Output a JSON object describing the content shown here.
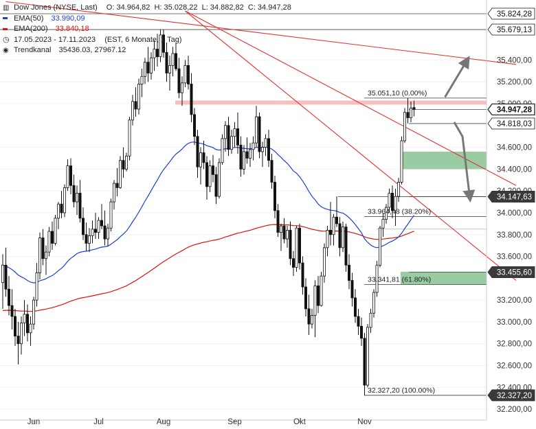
{
  "legend": {
    "instrument": "Dow Jones (NYSE, Last)",
    "ohlc": "O: 34.964,82  H: 35.028,22  L: 34.882,82  C: 34.947,28",
    "ema50_label": "EMA(50)",
    "ema50_value": "33.990,09",
    "ema200_label": "EMA(200)",
    "ema200_value": "33.840,18",
    "range": "17.05.2023 - 17.11.2023",
    "range_info": "(EST, 6 Monate, 1 Tag)",
    "channel_label": "Trendkanal",
    "channel_value": "35436.03, 27967.12"
  },
  "colors": {
    "ema50": "#1a3fd6",
    "ema200": "#e01010",
    "trend_line": "#e53030",
    "candle": "#111111",
    "fib_zone": "#8fc79a",
    "resistance_band": "#f4b6b6",
    "arrow": "#777777",
    "label_bg": "#3a3a3a"
  },
  "chart_data": {
    "type": "candlestick",
    "title": "Dow Jones (NYSE, Last)",
    "period": "17.05.2023 - 17.11.2023",
    "y_axis": {
      "range": [
        32100,
        35950
      ],
      "ticks": [
        "35.400,00",
        "35.200,00",
        "35.000,00",
        "34.600,00",
        "34.400,00",
        "34.200,00",
        "34.000,00",
        "33.800,00",
        "33.600,00",
        "33.200,00",
        "33.000,00",
        "32.800,00",
        "32.600,00",
        "32.400,00",
        "32.200,00"
      ],
      "tick_values": [
        35400,
        35200,
        35000,
        34600,
        34400,
        34200,
        34000,
        33800,
        33600,
        33200,
        33000,
        32800,
        32600,
        32400,
        32200
      ]
    },
    "x_axis": {
      "labels": [
        "Jun",
        "Jul",
        "Aug",
        "Sep",
        "Okt",
        "Nov"
      ],
      "label_index": [
        10,
        31,
        52,
        75,
        96,
        117
      ]
    },
    "price_labels": [
      {
        "text": "35.824,28",
        "value": 35824.28,
        "style": "outline"
      },
      {
        "text": "35.679,13",
        "value": 35679.13,
        "style": "outline"
      },
      {
        "text": "34.947,28",
        "value": 34947.28,
        "style": "outline-bold"
      },
      {
        "text": "34.818,03",
        "value": 34818.03,
        "style": "outline"
      },
      {
        "text": "34.147,63",
        "value": 34147.63,
        "style": "dark"
      },
      {
        "text": "33.455,60",
        "value": 33455.6,
        "style": "dark"
      },
      {
        "text": "32.327,20",
        "value": 32327.2,
        "style": "dark"
      }
    ],
    "fibonacci": [
      {
        "label": "35.051,10 (0.00%)",
        "value": 35051.1
      },
      {
        "label": "33.964,48 (38.20%)",
        "value": 33964.48
      },
      {
        "label": "33.341,81 (61.80%)",
        "value": 33341.81
      },
      {
        "label": "32.327,20 (100.00%)",
        "value": 32327.2
      }
    ],
    "zones": [
      {
        "name": "upper",
        "from": 34400,
        "to": 34560
      },
      {
        "name": "lower",
        "from": 33345,
        "to": 33460
      }
    ],
    "resistance": {
      "value": 35010
    },
    "support_lines": [
      {
        "value": 34147.63
      },
      {
        "value": 33850
      }
    ],
    "ema200_start": 33100,
    "trend_lines": [
      {
        "from": [
          1,
          35935
        ],
        "to": [
          166,
          35360
        ]
      },
      {
        "from": [
          59,
          35850
        ],
        "to": [
          166,
          33380
        ]
      },
      {
        "from": [
          59,
          35850
        ],
        "to": [
          166,
          34250
        ]
      }
    ],
    "arrows": [
      {
        "from": [
          143,
          35060
        ],
        "to": [
          150,
          35390
        ]
      },
      {
        "from": [
          146,
          34830
        ],
        "to": [
          151,
          34150
        ]
      }
    ],
    "candles": [
      {
        "o": 33360,
        "h": 33620,
        "l": 33120,
        "c": 33520
      },
      {
        "o": 33520,
        "h": 33680,
        "l": 33230,
        "c": 33300
      },
      {
        "o": 33300,
        "h": 33420,
        "l": 33060,
        "c": 33150
      },
      {
        "o": 33150,
        "h": 33300,
        "l": 32930,
        "c": 33050
      },
      {
        "o": 33050,
        "h": 33120,
        "l": 32780,
        "c": 32870
      },
      {
        "o": 32870,
        "h": 33000,
        "l": 32610,
        "c": 32800
      },
      {
        "o": 32800,
        "h": 33050,
        "l": 32700,
        "c": 32990
      },
      {
        "o": 32990,
        "h": 33200,
        "l": 32870,
        "c": 33070
      },
      {
        "o": 33070,
        "h": 33160,
        "l": 32820,
        "c": 32900
      },
      {
        "o": 32900,
        "h": 33050,
        "l": 32780,
        "c": 32980
      },
      {
        "o": 32980,
        "h": 33230,
        "l": 32930,
        "c": 33200
      },
      {
        "o": 33200,
        "h": 33540,
        "l": 33140,
        "c": 33450
      },
      {
        "o": 33450,
        "h": 33820,
        "l": 33390,
        "c": 33770
      },
      {
        "o": 33770,
        "h": 33850,
        "l": 33520,
        "c": 33580
      },
      {
        "o": 33580,
        "h": 33700,
        "l": 33430,
        "c": 33640
      },
      {
        "o": 33640,
        "h": 33870,
        "l": 33600,
        "c": 33830
      },
      {
        "o": 33830,
        "h": 33920,
        "l": 33660,
        "c": 33720
      },
      {
        "o": 33720,
        "h": 33980,
        "l": 33700,
        "c": 33950
      },
      {
        "o": 33950,
        "h": 34100,
        "l": 33850,
        "c": 34080
      },
      {
        "o": 34080,
        "h": 34200,
        "l": 33950,
        "c": 34000
      },
      {
        "o": 34000,
        "h": 34260,
        "l": 33960,
        "c": 34230
      },
      {
        "o": 34230,
        "h": 34490,
        "l": 34200,
        "c": 34430
      },
      {
        "o": 34430,
        "h": 34500,
        "l": 34170,
        "c": 34250
      },
      {
        "o": 34250,
        "h": 34350,
        "l": 34050,
        "c": 34100
      },
      {
        "o": 34100,
        "h": 34250,
        "l": 33980,
        "c": 34180
      },
      {
        "o": 34180,
        "h": 34300,
        "l": 33910,
        "c": 33950
      },
      {
        "o": 33950,
        "h": 34050,
        "l": 33750,
        "c": 33800
      },
      {
        "o": 33800,
        "h": 33910,
        "l": 33650,
        "c": 33720
      },
      {
        "o": 33720,
        "h": 33860,
        "l": 33640,
        "c": 33790
      },
      {
        "o": 33790,
        "h": 33930,
        "l": 33720,
        "c": 33850
      },
      {
        "o": 33850,
        "h": 34000,
        "l": 33760,
        "c": 33820
      },
      {
        "o": 33820,
        "h": 33960,
        "l": 33760,
        "c": 33930
      },
      {
        "o": 33930,
        "h": 34080,
        "l": 33850,
        "c": 33880
      },
      {
        "o": 33880,
        "h": 34020,
        "l": 33700,
        "c": 33760
      },
      {
        "o": 33760,
        "h": 33900,
        "l": 33690,
        "c": 33860
      },
      {
        "o": 33860,
        "h": 34130,
        "l": 33830,
        "c": 34100
      },
      {
        "o": 34100,
        "h": 34300,
        "l": 34030,
        "c": 34270
      },
      {
        "o": 34270,
        "h": 34410,
        "l": 34150,
        "c": 34230
      },
      {
        "o": 34230,
        "h": 34520,
        "l": 34220,
        "c": 34480
      },
      {
        "o": 34480,
        "h": 34600,
        "l": 34320,
        "c": 34400
      },
      {
        "o": 34400,
        "h": 34550,
        "l": 34380,
        "c": 34520
      },
      {
        "o": 34520,
        "h": 34880,
        "l": 34480,
        "c": 34850
      },
      {
        "o": 34850,
        "h": 35080,
        "l": 34800,
        "c": 35020
      },
      {
        "o": 35020,
        "h": 35150,
        "l": 34880,
        "c": 34950
      },
      {
        "o": 34950,
        "h": 35230,
        "l": 34900,
        "c": 35180
      },
      {
        "o": 35180,
        "h": 35320,
        "l": 35060,
        "c": 35250
      },
      {
        "o": 35250,
        "h": 35420,
        "l": 35180,
        "c": 35380
      },
      {
        "o": 35380,
        "h": 35520,
        "l": 35200,
        "c": 35280
      },
      {
        "o": 35280,
        "h": 35470,
        "l": 35220,
        "c": 35420
      },
      {
        "o": 35420,
        "h": 35580,
        "l": 35300,
        "c": 35500
      },
      {
        "o": 35500,
        "h": 35640,
        "l": 35340,
        "c": 35430
      },
      {
        "o": 35430,
        "h": 35680,
        "l": 35380,
        "c": 35630
      },
      {
        "o": 35630,
        "h": 35680,
        "l": 35420,
        "c": 35470
      },
      {
        "o": 35470,
        "h": 35560,
        "l": 35200,
        "c": 35280
      },
      {
        "o": 35280,
        "h": 35440,
        "l": 35120,
        "c": 35350
      },
      {
        "o": 35350,
        "h": 35520,
        "l": 35250,
        "c": 35460
      },
      {
        "o": 35460,
        "h": 35560,
        "l": 35300,
        "c": 35320
      },
      {
        "o": 35320,
        "h": 35420,
        "l": 35050,
        "c": 35100
      },
      {
        "o": 35100,
        "h": 35250,
        "l": 34980,
        "c": 35190
      },
      {
        "o": 35190,
        "h": 35400,
        "l": 35150,
        "c": 35350
      },
      {
        "o": 35350,
        "h": 35440,
        "l": 35130,
        "c": 35180
      },
      {
        "o": 35180,
        "h": 35280,
        "l": 34830,
        "c": 34900
      },
      {
        "o": 34900,
        "h": 34960,
        "l": 34620,
        "c": 34700
      },
      {
        "o": 34700,
        "h": 34760,
        "l": 34320,
        "c": 34420
      },
      {
        "o": 34420,
        "h": 34600,
        "l": 34260,
        "c": 34550
      },
      {
        "o": 34550,
        "h": 34660,
        "l": 34400,
        "c": 34460
      },
      {
        "o": 34460,
        "h": 34520,
        "l": 34120,
        "c": 34240
      },
      {
        "o": 34240,
        "h": 34480,
        "l": 34190,
        "c": 34430
      },
      {
        "o": 34430,
        "h": 34530,
        "l": 34280,
        "c": 34350
      },
      {
        "o": 34350,
        "h": 34420,
        "l": 34080,
        "c": 34150
      },
      {
        "o": 34150,
        "h": 34500,
        "l": 34130,
        "c": 34460
      },
      {
        "o": 34460,
        "h": 34720,
        "l": 34440,
        "c": 34680
      },
      {
        "o": 34680,
        "h": 34840,
        "l": 34560,
        "c": 34800
      },
      {
        "o": 34800,
        "h": 34880,
        "l": 34520,
        "c": 34580
      },
      {
        "o": 34580,
        "h": 34760,
        "l": 34540,
        "c": 34700
      },
      {
        "o": 34700,
        "h": 34830,
        "l": 34600,
        "c": 34770
      },
      {
        "o": 34770,
        "h": 34920,
        "l": 34540,
        "c": 34620
      },
      {
        "o": 34620,
        "h": 34700,
        "l": 34330,
        "c": 34400
      },
      {
        "o": 34400,
        "h": 34620,
        "l": 34350,
        "c": 34560
      },
      {
        "o": 34560,
        "h": 34690,
        "l": 34450,
        "c": 34500
      },
      {
        "o": 34500,
        "h": 34640,
        "l": 34420,
        "c": 34580
      },
      {
        "o": 34580,
        "h": 34700,
        "l": 34480,
        "c": 34640
      },
      {
        "o": 34640,
        "h": 34980,
        "l": 34600,
        "c": 34880
      },
      {
        "o": 34880,
        "h": 34920,
        "l": 34500,
        "c": 34560
      },
      {
        "o": 34560,
        "h": 34650,
        "l": 34420,
        "c": 34600
      },
      {
        "o": 34600,
        "h": 34720,
        "l": 34520,
        "c": 34680
      },
      {
        "o": 34680,
        "h": 34760,
        "l": 34420,
        "c": 34480
      },
      {
        "o": 34480,
        "h": 34540,
        "l": 34220,
        "c": 34280
      },
      {
        "o": 34280,
        "h": 34340,
        "l": 33950,
        "c": 34020
      },
      {
        "o": 34020,
        "h": 34080,
        "l": 33780,
        "c": 33820
      },
      {
        "o": 33820,
        "h": 33900,
        "l": 33650,
        "c": 33880
      },
      {
        "o": 33880,
        "h": 33950,
        "l": 33720,
        "c": 33760
      },
      {
        "o": 33760,
        "h": 33880,
        "l": 33680,
        "c": 33840
      },
      {
        "o": 33840,
        "h": 33920,
        "l": 33520,
        "c": 33580
      },
      {
        "o": 33580,
        "h": 33650,
        "l": 33420,
        "c": 33500
      },
      {
        "o": 33500,
        "h": 33880,
        "l": 33460,
        "c": 33860
      },
      {
        "o": 33860,
        "h": 33900,
        "l": 33480,
        "c": 33540
      },
      {
        "o": 33540,
        "h": 33600,
        "l": 33250,
        "c": 33320
      },
      {
        "o": 33320,
        "h": 33400,
        "l": 33050,
        "c": 33120
      },
      {
        "o": 33120,
        "h": 33250,
        "l": 32880,
        "c": 32980
      },
      {
        "o": 32980,
        "h": 33120,
        "l": 32940,
        "c": 33060
      },
      {
        "o": 33060,
        "h": 33380,
        "l": 32860,
        "c": 33330
      },
      {
        "o": 33330,
        "h": 33420,
        "l": 33080,
        "c": 33150
      },
      {
        "o": 33150,
        "h": 33460,
        "l": 33140,
        "c": 33420
      },
      {
        "o": 33420,
        "h": 33720,
        "l": 33360,
        "c": 33680
      },
      {
        "o": 33680,
        "h": 33880,
        "l": 33600,
        "c": 33840
      },
      {
        "o": 33840,
        "h": 34100,
        "l": 33700,
        "c": 33800
      },
      {
        "o": 33800,
        "h": 33990,
        "l": 33700,
        "c": 33960
      },
      {
        "o": 33960,
        "h": 34150,
        "l": 33870,
        "c": 33900
      },
      {
        "o": 33900,
        "h": 33960,
        "l": 33600,
        "c": 33680
      },
      {
        "o": 33680,
        "h": 33920,
        "l": 33640,
        "c": 33870
      },
      {
        "o": 33870,
        "h": 33900,
        "l": 33460,
        "c": 33520
      },
      {
        "o": 33520,
        "h": 33620,
        "l": 33300,
        "c": 33380
      },
      {
        "o": 33380,
        "h": 33450,
        "l": 33140,
        "c": 33220
      },
      {
        "o": 33220,
        "h": 33300,
        "l": 32990,
        "c": 33050
      },
      {
        "o": 33050,
        "h": 33120,
        "l": 32880,
        "c": 32960
      },
      {
        "o": 32960,
        "h": 33040,
        "l": 32780,
        "c": 32850
      },
      {
        "o": 32850,
        "h": 32900,
        "l": 32330,
        "c": 32420
      },
      {
        "o": 32420,
        "h": 32980,
        "l": 32400,
        "c": 32950
      },
      {
        "o": 32950,
        "h": 33120,
        "l": 32900,
        "c": 33080
      },
      {
        "o": 33080,
        "h": 33300,
        "l": 33040,
        "c": 33270
      },
      {
        "o": 33270,
        "h": 33560,
        "l": 33230,
        "c": 33520
      },
      {
        "o": 33520,
        "h": 33880,
        "l": 33500,
        "c": 33860
      },
      {
        "o": 33860,
        "h": 34000,
        "l": 33780,
        "c": 33940
      },
      {
        "o": 33940,
        "h": 34080,
        "l": 33900,
        "c": 34050
      },
      {
        "o": 34050,
        "h": 34220,
        "l": 34000,
        "c": 34180
      },
      {
        "o": 34180,
        "h": 34250,
        "l": 33950,
        "c": 34020
      },
      {
        "o": 34020,
        "h": 34220,
        "l": 33880,
        "c": 34150
      },
      {
        "o": 34150,
        "h": 34320,
        "l": 34100,
        "c": 34280
      },
      {
        "o": 34280,
        "h": 34700,
        "l": 34260,
        "c": 34660
      },
      {
        "o": 34660,
        "h": 34960,
        "l": 34640,
        "c": 34920
      },
      {
        "o": 34920,
        "h": 35051,
        "l": 34820,
        "c": 34870
      },
      {
        "o": 34870,
        "h": 35020,
        "l": 34830,
        "c": 34960
      },
      {
        "o": 34964.82,
        "h": 35028.22,
        "l": 34882.82,
        "c": 34947.28
      }
    ]
  }
}
